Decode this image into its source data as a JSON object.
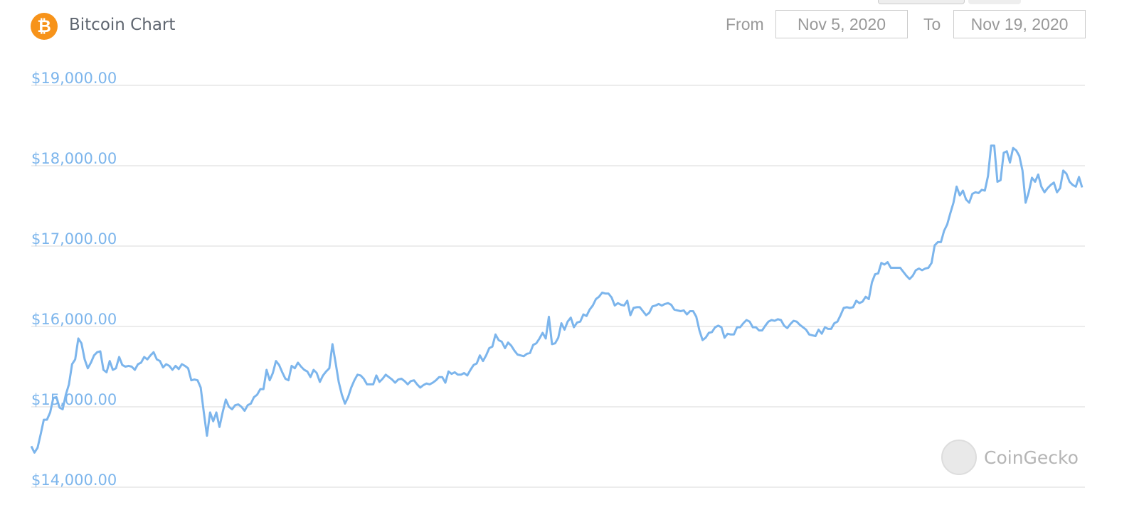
{
  "header": {
    "title": "Bitcoin Chart",
    "icon": "bitcoin-icon",
    "icon_glyph": "₿",
    "from_label": "From",
    "from_value": "Nov 5, 2020",
    "to_label": "To",
    "to_value": "Nov 19, 2020"
  },
  "watermark": {
    "text": "CoinGecko",
    "icon": "gecko-logo-icon"
  },
  "chart_data": {
    "type": "line",
    "title": "Bitcoin Chart",
    "x_range": [
      "2020-11-05",
      "2020-11-19"
    ],
    "ylim": [
      14000,
      19000
    ],
    "y_ticks": [
      19000,
      18000,
      17000,
      16000,
      15000,
      14000
    ],
    "y_tick_labels": [
      "$19,000.00",
      "$18,000.00",
      "$17,000.00",
      "$16,000.00",
      "$15,000.00",
      "$14,000.00"
    ],
    "grid": true,
    "line_color": "#7cb5ec",
    "tick_label_color": "#7cb5ec",
    "values": [
      14510,
      14430,
      14490,
      14660,
      14840,
      14840,
      14930,
      15110,
      15120,
      14990,
      14970,
      15150,
      15280,
      15530,
      15590,
      15850,
      15790,
      15590,
      15480,
      15550,
      15640,
      15680,
      15690,
      15460,
      15430,
      15570,
      15460,
      15480,
      15620,
      15520,
      15500,
      15510,
      15500,
      15460,
      15530,
      15550,
      15620,
      15590,
      15640,
      15680,
      15590,
      15570,
      15490,
      15530,
      15510,
      15460,
      15510,
      15470,
      15530,
      15510,
      15480,
      15330,
      15340,
      15330,
      15240,
      14930,
      14640,
      14930,
      14820,
      14930,
      14750,
      14930,
      15090,
      15000,
      14970,
      15020,
      15030,
      15000,
      14950,
      15020,
      15040,
      15120,
      15150,
      15220,
      15220,
      15460,
      15330,
      15420,
      15570,
      15520,
      15430,
      15350,
      15330,
      15510,
      15480,
      15550,
      15500,
      15460,
      15440,
      15370,
      15460,
      15420,
      15310,
      15390,
      15440,
      15480,
      15780,
      15550,
      15310,
      15150,
      15040,
      15120,
      15240,
      15330,
      15400,
      15390,
      15350,
      15280,
      15280,
      15280,
      15390,
      15310,
      15350,
      15400,
      15370,
      15340,
      15300,
      15340,
      15350,
      15320,
      15280,
      15320,
      15330,
      15280,
      15240,
      15270,
      15290,
      15280,
      15300,
      15330,
      15370,
      15370,
      15300,
      15440,
      15410,
      15430,
      15400,
      15400,
      15420,
      15390,
      15460,
      15520,
      15540,
      15640,
      15570,
      15640,
      15730,
      15750,
      15900,
      15830,
      15810,
      15730,
      15800,
      15760,
      15700,
      15650,
      15640,
      15630,
      15660,
      15670,
      15770,
      15790,
      15850,
      15920,
      15850,
      16120,
      15780,
      15790,
      15860,
      16040,
      15960,
      16060,
      16110,
      15990,
      16050,
      16060,
      16150,
      16130,
      16210,
      16260,
      16340,
      16370,
      16420,
      16410,
      16410,
      16360,
      16260,
      16290,
      16270,
      16260,
      16320,
      16140,
      16230,
      16240,
      16240,
      16190,
      16140,
      16170,
      16250,
      16260,
      16280,
      16260,
      16280,
      16290,
      16270,
      16210,
      16200,
      16190,
      16200,
      16150,
      16190,
      16190,
      16120,
      15950,
      15830,
      15860,
      15920,
      15930,
      15990,
      16010,
      15990,
      15860,
      15910,
      15900,
      15900,
      15990,
      15990,
      16040,
      16080,
      16060,
      15990,
      15990,
      15950,
      15950,
      16010,
      16060,
      16080,
      16070,
      16090,
      16080,
      16010,
      15980,
      16030,
      16070,
      16060,
      16020,
      15990,
      15960,
      15900,
      15890,
      15880,
      15960,
      15910,
      15990,
      15970,
      15970,
      16040,
      16060,
      16140,
      16230,
      16240,
      16230,
      16240,
      16320,
      16290,
      16310,
      16370,
      16340,
      16550,
      16650,
      16660,
      16790,
      16770,
      16800,
      16730,
      16730,
      16730,
      16730,
      16680,
      16630,
      16590,
      16630,
      16700,
      16720,
      16700,
      16720,
      16730,
      16790,
      17010,
      17050,
      17050,
      17190,
      17270,
      17410,
      17540,
      17740,
      17630,
      17690,
      17580,
      17540,
      17650,
      17670,
      17660,
      17700,
      17690,
      17870,
      18250,
      18250,
      17800,
      17820,
      18160,
      18180,
      18040,
      18220,
      18190,
      18120,
      17940,
      17540,
      17670,
      17850,
      17800,
      17890,
      17740,
      17670,
      17720,
      17760,
      17790,
      17670,
      17720,
      17940,
      17900,
      17800,
      17760,
      17740,
      17860,
      17730
    ]
  }
}
